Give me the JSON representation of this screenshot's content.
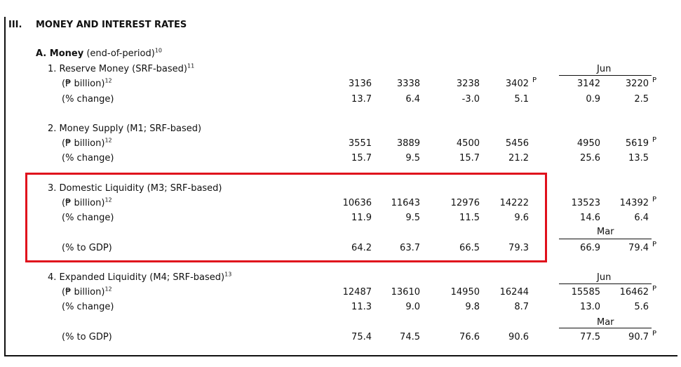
{
  "section": {
    "roman": "III.",
    "title": "MONEY AND INTEREST RATES"
  },
  "subsection": {
    "label": "A. Money",
    "note": "(end-of-period)",
    "footnote": "10"
  },
  "items": [
    {
      "title": "1. Reserve Money (SRF-based)",
      "footnote": "11",
      "rows": [
        {
          "label": "(₱ billion)",
          "footnote": "12",
          "values": [
            "3136",
            "3338",
            "3238",
            "3402"
          ],
          "p1": "P",
          "period_values": [
            "3142",
            "3220"
          ],
          "p2": "P"
        },
        {
          "label": "(% change)",
          "values": [
            "13.7",
            "6.4",
            "-3.0",
            "5.1"
          ],
          "period_values": [
            "0.9",
            "2.5"
          ]
        }
      ],
      "period_header": "Jun"
    },
    {
      "title": "2. Money Supply (M1; SRF-based)",
      "rows": [
        {
          "label": "(₱ billion)",
          "footnote": "12",
          "values": [
            "3551",
            "3889",
            "4500",
            "5456"
          ],
          "period_values": [
            "4950",
            "5619"
          ],
          "p2": "P"
        },
        {
          "label": "(% change)",
          "values": [
            "15.7",
            "9.5",
            "15.7",
            "21.2"
          ],
          "period_values": [
            "25.6",
            "13.5"
          ]
        }
      ]
    },
    {
      "title": "3. Domestic Liquidity (M3; SRF-based)",
      "rows": [
        {
          "label": "(₱ billion)",
          "footnote": "12",
          "values": [
            "10636",
            "11643",
            "12976",
            "14222"
          ],
          "period_values": [
            "13523",
            "14392"
          ],
          "p2": "P"
        },
        {
          "label": "(% change)",
          "values": [
            "11.9",
            "9.5",
            "11.5",
            "9.6"
          ],
          "period_values": [
            "14.6",
            "6.4"
          ]
        },
        {
          "label": "(% to GDP)",
          "values": [
            "64.2",
            "63.7",
            "66.5",
            "79.3"
          ],
          "period_values": [
            "66.9",
            "79.4"
          ],
          "p2": "P"
        }
      ],
      "gdp_period_header": "Mar"
    },
    {
      "title": "4. Expanded Liquidity (M4; SRF-based)",
      "footnote": "13",
      "rows": [
        {
          "label": "(₱ billion)",
          "footnote": "12",
          "values": [
            "12487",
            "13610",
            "14950",
            "16244"
          ],
          "period_values": [
            "15585",
            "16462"
          ],
          "p2": "P"
        },
        {
          "label": "(% change)",
          "values": [
            "11.3",
            "9.0",
            "9.8",
            "8.7"
          ],
          "period_values": [
            "13.0",
            "5.6"
          ]
        },
        {
          "label": "(% to GDP)",
          "values": [
            "75.4",
            "74.5",
            "76.6",
            "90.6"
          ],
          "period_values": [
            "77.5",
            "90.7"
          ],
          "p2": "P"
        }
      ],
      "period_header": "Jun",
      "gdp_period_header": "Mar"
    }
  ]
}
